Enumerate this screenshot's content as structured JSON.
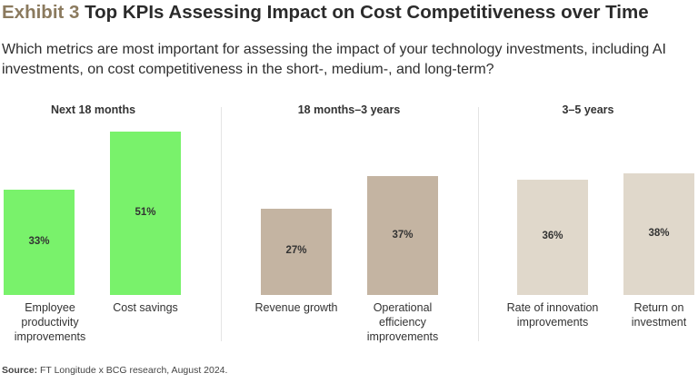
{
  "header": {
    "exhibit_label": "Exhibit 3",
    "title": "Top KPIs Assessing Impact on Cost Competitiveness over Time",
    "subtitle": "Which metrics are most important for assessing the impact of your technology investments, including AI investments, on cost competitiveness in the short-, medium-, and long-term?"
  },
  "footer": {
    "source_label": "Source:",
    "source_text": "FT Longitude x BCG research, August 2024."
  },
  "colors": {
    "exhibit_label": "#8b7a5e",
    "panel1_bar": "#79f26b",
    "panel2_bar": "#c4b4a2",
    "panel3_bar": "#e0d8cb"
  },
  "chart_data": {
    "type": "bar",
    "title": "Top KPIs Assessing Impact on Cost Competitiveness over Time",
    "value_unit": "%",
    "ylim": [
      0,
      60
    ],
    "panels": [
      {
        "name": "Next 18 months",
        "color": "#79f26b",
        "categories": [
          "Employee productivity improvements",
          "Cost savings"
        ],
        "values": [
          33,
          51
        ],
        "labels": [
          "33%",
          "51%"
        ]
      },
      {
        "name": "18 months–3 years",
        "color": "#c4b4a2",
        "categories": [
          "Revenue growth",
          "Operational efficiency improvements"
        ],
        "values": [
          27,
          37
        ],
        "labels": [
          "27%",
          "37%"
        ]
      },
      {
        "name": "3–5 years",
        "color": "#e0d8cb",
        "categories": [
          "Rate of innovation improvements",
          "Return on investment"
        ],
        "values": [
          36,
          38
        ],
        "labels": [
          "36%",
          "38%"
        ]
      }
    ]
  }
}
